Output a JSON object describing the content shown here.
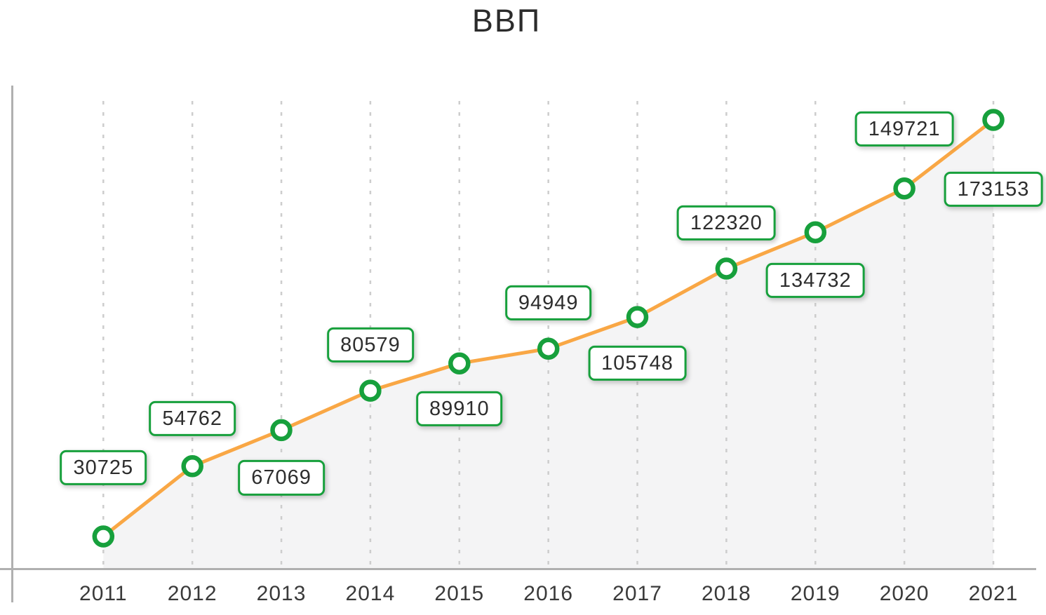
{
  "title": "ВВП",
  "chart_data": {
    "type": "line",
    "title": "ВВП",
    "categories": [
      "2011",
      "2012",
      "2013",
      "2014",
      "2015",
      "2016",
      "2017",
      "2018",
      "2019",
      "2020",
      "2021"
    ],
    "series": [
      {
        "name": "ВВП",
        "values": [
          30725,
          54762,
          67069,
          80579,
          89910,
          94949,
          105748,
          122320,
          134732,
          149721,
          173153
        ]
      }
    ],
    "point_labels": [
      "30725",
      "54762",
      "67069",
      "80579",
      "89910",
      "94949",
      "105748",
      "122320",
      "134732",
      "149721",
      "173153"
    ],
    "label_placement": [
      "above",
      "above",
      "below",
      "above",
      "below",
      "above",
      "below",
      "above",
      "below",
      "above",
      "below"
    ],
    "xlabel": "",
    "ylabel": "",
    "y_axis_tick_labels": "none",
    "legend": "none",
    "grid": "vertical-dashed",
    "colors": {
      "line": "#F9A745",
      "marker_fill": "#FFFFFF",
      "marker_stroke": "#17A03C",
      "area_fill": "#F4F4F5",
      "label_border": "#17A03C",
      "label_text": "#2D2D2D",
      "label_background": "#FFFFFF",
      "grid": "#CDCDCD",
      "axis": "#B0B0B0",
      "title_text": "#2B2B2B",
      "tick_text": "#3A3A3A"
    }
  }
}
